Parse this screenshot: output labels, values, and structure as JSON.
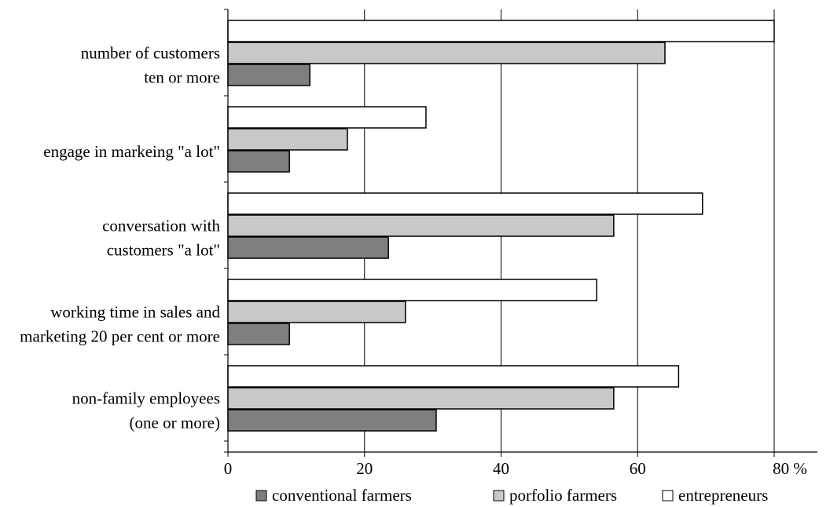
{
  "chart_data": {
    "type": "bar",
    "orientation": "horizontal",
    "categories": [
      [
        "number of customers",
        "ten or more"
      ],
      [
        "engage in markeing \"a lot\""
      ],
      [
        "conversation with",
        "customers \"a lot\""
      ],
      [
        "working time in sales and",
        "marketing 20 per cent or more"
      ],
      [
        "non-family employees",
        "(one or more)"
      ]
    ],
    "series": [
      {
        "name": "entrepreneurs",
        "color": "#ffffff",
        "values": [
          80,
          29,
          69.5,
          54,
          66
        ]
      },
      {
        "name": "porfolio farmers",
        "color": "#c8c8c8",
        "values": [
          64,
          17.5,
          56.5,
          26,
          56.5
        ]
      },
      {
        "name": "conventional farmers",
        "color": "#7f7f7f",
        "values": [
          12,
          9,
          23.5,
          9,
          30.5
        ]
      }
    ],
    "xlim": [
      0,
      80
    ],
    "xticks": [
      "0",
      "20",
      "40",
      "60",
      "80 %"
    ],
    "grid": true,
    "legend": [
      {
        "label": "conventional farmers",
        "color": "#7f7f7f"
      },
      {
        "label": "porfolio farmers",
        "color": "#c8c8c8"
      },
      {
        "label": "entrepreneurs",
        "color": "#ffffff"
      }
    ],
    "legend_position": "bottom"
  }
}
